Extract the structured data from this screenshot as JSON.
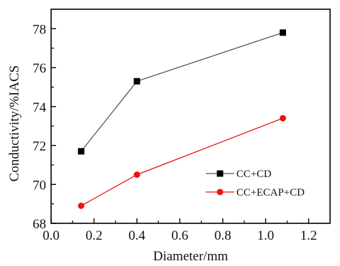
{
  "chart_data": {
    "type": "line",
    "title": "",
    "xlabel": "Diameter/mm",
    "ylabel": "Conductivity/%IACS",
    "xlim": [
      0.0,
      1.3
    ],
    "ylim": [
      68,
      79
    ],
    "x_ticks": [
      0.0,
      0.2,
      0.4,
      0.6,
      0.8,
      1.0,
      1.2
    ],
    "x_tick_labels": [
      "0.0",
      "0.2",
      "0.4",
      "0.6",
      "0.8",
      "1.0",
      "1.2"
    ],
    "y_ticks": [
      68,
      70,
      72,
      74,
      76,
      78
    ],
    "y_tick_labels": [
      "68",
      "70",
      "72",
      "74",
      "76",
      "78"
    ],
    "grid": false,
    "legend_position": "lower-right",
    "series": [
      {
        "name": "CC+CD",
        "marker": "square",
        "color": "#000000",
        "line_color": "#555555",
        "x": [
          0.14,
          0.4,
          1.08
        ],
        "y": [
          71.7,
          75.3,
          77.8
        ]
      },
      {
        "name": "CC+ECAP+CD",
        "marker": "circle",
        "color": "#ee1111",
        "line_color": "#ee1111",
        "x": [
          0.14,
          0.4,
          1.08
        ],
        "y": [
          68.9,
          70.5,
          73.4
        ]
      }
    ]
  }
}
